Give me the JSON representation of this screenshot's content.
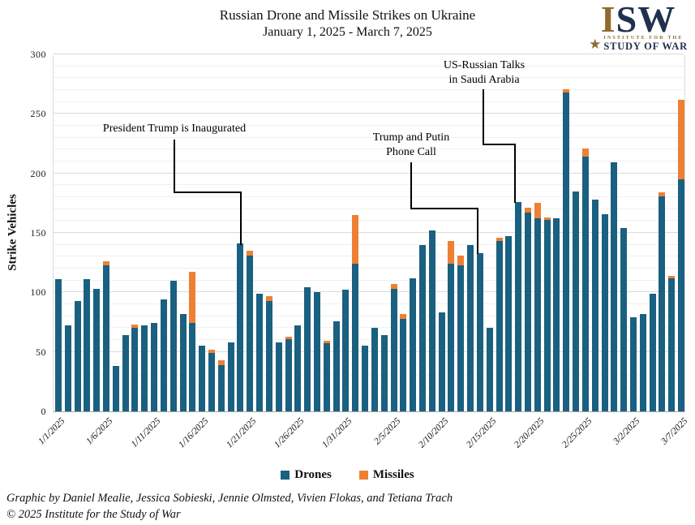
{
  "title": {
    "line1": "Russian Drone and Missile Strikes on Ukraine",
    "line2": "January 1, 2025 - March 7, 2025"
  },
  "logo": {
    "i": "I",
    "sw": "SW",
    "tagline1": "INSTITUTE FOR THE",
    "tagline2": "STUDY OF WAR"
  },
  "colors": {
    "drones": "#1a6080",
    "missiles": "#ee8033",
    "navy": "#1e3150",
    "gold": "#8e6b2e"
  },
  "annotations": [
    {
      "line1": "President Trump is Inaugurated",
      "line2": "",
      "target_date": "1/20/2025"
    },
    {
      "line1": "Trump and Putin",
      "line2": "Phone Call",
      "target_date": "2/14/2025"
    },
    {
      "line1": "US-Russian Talks",
      "line2": "in Saudi Arabia",
      "target_date": "2/18/2025"
    }
  ],
  "footer": {
    "line1": "Graphic by Daniel Mealie, Jessica Sobieski, Jennie Olmsted, Vivien Flokas, and Tetiana Trach",
    "line2": "© 2025 Institute for the Study of War"
  },
  "chart_data": {
    "type": "bar",
    "stacked": true,
    "title": "Russian Drone and Missile Strikes on Ukraine",
    "subtitle": "January 1, 2025 - March 7, 2025",
    "xlabel": "",
    "ylabel": "Strike Vehicles",
    "ylim": [
      0,
      300
    ],
    "y_ticks": [
      0,
      50,
      100,
      150,
      200,
      250,
      300
    ],
    "grid": {
      "minor_step": 10,
      "major_step": 50
    },
    "legend_position": "bottom",
    "dates": [
      "1/1/2025",
      "1/2/2025",
      "1/3/2025",
      "1/4/2025",
      "1/5/2025",
      "1/6/2025",
      "1/7/2025",
      "1/8/2025",
      "1/9/2025",
      "1/10/2025",
      "1/11/2025",
      "1/12/2025",
      "1/13/2025",
      "1/14/2025",
      "1/15/2025",
      "1/16/2025",
      "1/17/2025",
      "1/18/2025",
      "1/19/2025",
      "1/20/2025",
      "1/21/2025",
      "1/22/2025",
      "1/23/2025",
      "1/24/2025",
      "1/25/2025",
      "1/26/2025",
      "1/27/2025",
      "1/28/2025",
      "1/29/2025",
      "1/30/2025",
      "1/31/2025",
      "2/1/2025",
      "2/2/2025",
      "2/3/2025",
      "2/4/2025",
      "2/5/2025",
      "2/6/2025",
      "2/7/2025",
      "2/8/2025",
      "2/9/2025",
      "2/10/2025",
      "2/11/2025",
      "2/12/2025",
      "2/13/2025",
      "2/14/2025",
      "2/15/2025",
      "2/16/2025",
      "2/17/2025",
      "2/18/2025",
      "2/19/2025",
      "2/20/2025",
      "2/21/2025",
      "2/22/2025",
      "2/23/2025",
      "2/24/2025",
      "2/25/2025",
      "2/26/2025",
      "2/27/2025",
      "2/28/2025",
      "3/1/2025",
      "3/2/2025",
      "3/3/2025",
      "3/4/2025",
      "3/5/2025",
      "3/6/2025",
      "3/7/2025"
    ],
    "series": [
      {
        "name": "Drones",
        "color": "#1a6080",
        "values": [
          111,
          72,
          93,
          111,
          103,
          123,
          38,
          64,
          70,
          72,
          74,
          94,
          110,
          82,
          74,
          55,
          49,
          39,
          58,
          141,
          131,
          99,
          93,
          58,
          61,
          72,
          104,
          100,
          57,
          76,
          102,
          124,
          55,
          70,
          64,
          103,
          78,
          112,
          140,
          152,
          83,
          124,
          123,
          140,
          133,
          70,
          143,
          147,
          176,
          167,
          162,
          161,
          162,
          268,
          185,
          214,
          178,
          166,
          209,
          154,
          79,
          82,
          99,
          181,
          112,
          195
        ]
      },
      {
        "name": "Missiles",
        "color": "#ee8033",
        "values": [
          0,
          0,
          0,
          0,
          0,
          3,
          0,
          0,
          3,
          0,
          0,
          0,
          0,
          0,
          43,
          0,
          3,
          4,
          0,
          0,
          4,
          0,
          4,
          0,
          2,
          0,
          0,
          0,
          2,
          0,
          0,
          41,
          0,
          0,
          0,
          4,
          4,
          0,
          0,
          0,
          0,
          19,
          8,
          0,
          0,
          0,
          3,
          0,
          0,
          4,
          13,
          2,
          0,
          3,
          0,
          7,
          0,
          0,
          0,
          0,
          0,
          0,
          0,
          3,
          2,
          67
        ]
      }
    ],
    "x_tick_labels": [
      "1/1/2025",
      "1/6/2025",
      "1/11/2025",
      "1/16/2025",
      "1/21/2025",
      "1/26/2025",
      "1/31/2025",
      "2/5/2025",
      "2/10/2025",
      "2/15/2025",
      "2/20/2025",
      "2/25/2025",
      "3/2/2025",
      "3/7/2025"
    ],
    "x_tick_indices": [
      0,
      5,
      10,
      15,
      20,
      25,
      30,
      35,
      40,
      45,
      50,
      55,
      60,
      65
    ]
  }
}
